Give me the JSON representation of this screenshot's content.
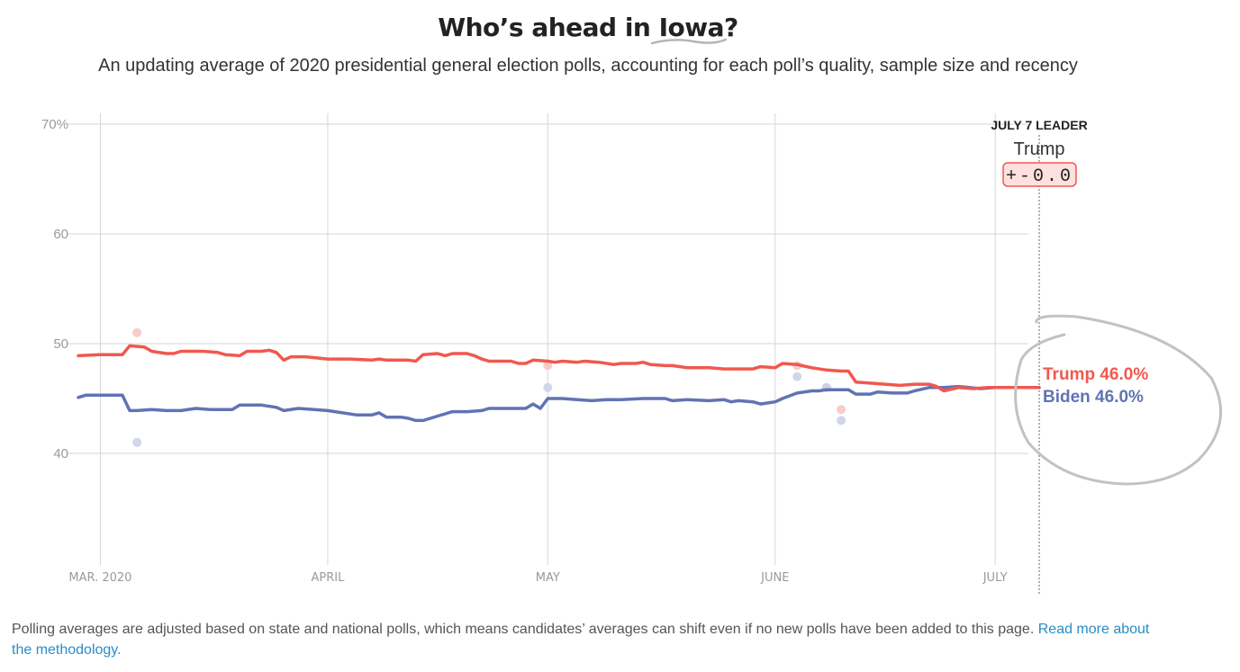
{
  "header": {
    "title": "Who’s ahead in Iowa?",
    "subtitle": "An updating average of 2020 presidential general election polls, accounting for each poll’s quality, sample size and recency"
  },
  "leader_box": {
    "heading": "JULY 7 LEADER",
    "name": "Trump",
    "margin": "+-0.0"
  },
  "footnote": {
    "text": "Polling averages are adjusted based on state and national polls, which means candidates’ averages can shift even if no new polls have been added to this page.",
    "link": "Read more about the methodology."
  },
  "colors": {
    "trump": "#f0584f",
    "biden": "#6173b3",
    "grid": "#d6d6d6",
    "axis_text": "#9a9a9a"
  },
  "chart_data": {
    "type": "line",
    "x_type": "date",
    "x_start": "2020-02-27",
    "x_end": "2020-07-07",
    "ylim": [
      30,
      71
    ],
    "y_ticks": [
      {
        "value": 70,
        "label": "70%"
      },
      {
        "value": 60,
        "label": "60"
      },
      {
        "value": 50,
        "label": "50"
      },
      {
        "value": 40,
        "label": "40"
      }
    ],
    "x_ticks": [
      {
        "date": "2020-03-01",
        "label": "MAR. 2020"
      },
      {
        "date": "2020-04-01",
        "label": "APRIL"
      },
      {
        "date": "2020-05-01",
        "label": "MAY"
      },
      {
        "date": "2020-06-01",
        "label": "JUNE"
      },
      {
        "date": "2020-07-01",
        "label": "JULY"
      }
    ],
    "grid": true,
    "series": [
      {
        "name": "Trump",
        "end_label": "Trump 46.0%",
        "points": [
          [
            "2020-02-27",
            48.9
          ],
          [
            "2020-03-01",
            49.0
          ],
          [
            "2020-03-04",
            49.0
          ],
          [
            "2020-03-05",
            49.8
          ],
          [
            "2020-03-07",
            49.7
          ],
          [
            "2020-03-08",
            49.3
          ],
          [
            "2020-03-10",
            49.1
          ],
          [
            "2020-03-11",
            49.1
          ],
          [
            "2020-03-12",
            49.3
          ],
          [
            "2020-03-15",
            49.3
          ],
          [
            "2020-03-17",
            49.2
          ],
          [
            "2020-03-18",
            49.0
          ],
          [
            "2020-03-20",
            48.9
          ],
          [
            "2020-03-21",
            49.3
          ],
          [
            "2020-03-23",
            49.3
          ],
          [
            "2020-03-24",
            49.4
          ],
          [
            "2020-03-25",
            49.2
          ],
          [
            "2020-03-26",
            48.5
          ],
          [
            "2020-03-27",
            48.8
          ],
          [
            "2020-03-29",
            48.8
          ],
          [
            "2020-04-01",
            48.6
          ],
          [
            "2020-04-04",
            48.6
          ],
          [
            "2020-04-07",
            48.5
          ],
          [
            "2020-04-08",
            48.6
          ],
          [
            "2020-04-09",
            48.5
          ],
          [
            "2020-04-12",
            48.5
          ],
          [
            "2020-04-13",
            48.4
          ],
          [
            "2020-04-14",
            49.0
          ],
          [
            "2020-04-16",
            49.1
          ],
          [
            "2020-04-17",
            48.9
          ],
          [
            "2020-04-18",
            49.1
          ],
          [
            "2020-04-20",
            49.1
          ],
          [
            "2020-04-21",
            48.9
          ],
          [
            "2020-04-22",
            48.6
          ],
          [
            "2020-04-23",
            48.4
          ],
          [
            "2020-04-26",
            48.4
          ],
          [
            "2020-04-27",
            48.2
          ],
          [
            "2020-04-28",
            48.2
          ],
          [
            "2020-04-29",
            48.5
          ],
          [
            "2020-05-01",
            48.4
          ],
          [
            "2020-05-02",
            48.3
          ],
          [
            "2020-05-03",
            48.4
          ],
          [
            "2020-05-05",
            48.3
          ],
          [
            "2020-05-06",
            48.4
          ],
          [
            "2020-05-08",
            48.3
          ],
          [
            "2020-05-10",
            48.1
          ],
          [
            "2020-05-11",
            48.2
          ],
          [
            "2020-05-13",
            48.2
          ],
          [
            "2020-05-14",
            48.3
          ],
          [
            "2020-05-15",
            48.1
          ],
          [
            "2020-05-17",
            48.0
          ],
          [
            "2020-05-18",
            48.0
          ],
          [
            "2020-05-20",
            47.8
          ],
          [
            "2020-05-23",
            47.8
          ],
          [
            "2020-05-25",
            47.7
          ],
          [
            "2020-05-29",
            47.7
          ],
          [
            "2020-05-30",
            47.9
          ],
          [
            "2020-06-01",
            47.8
          ],
          [
            "2020-06-02",
            48.2
          ],
          [
            "2020-06-04",
            48.1
          ],
          [
            "2020-06-06",
            47.8
          ],
          [
            "2020-06-08",
            47.6
          ],
          [
            "2020-06-10",
            47.5
          ],
          [
            "2020-06-11",
            47.5
          ],
          [
            "2020-06-12",
            46.5
          ],
          [
            "2020-06-14",
            46.4
          ],
          [
            "2020-06-16",
            46.3
          ],
          [
            "2020-06-18",
            46.2
          ],
          [
            "2020-06-20",
            46.3
          ],
          [
            "2020-06-22",
            46.3
          ],
          [
            "2020-06-23",
            46.1
          ],
          [
            "2020-06-24",
            45.7
          ],
          [
            "2020-06-26",
            46.0
          ],
          [
            "2020-06-28",
            45.9
          ],
          [
            "2020-06-30",
            46.0
          ],
          [
            "2020-07-02",
            46.0
          ],
          [
            "2020-07-04",
            46.0
          ],
          [
            "2020-07-07",
            46.0
          ]
        ]
      },
      {
        "name": "Biden",
        "end_label": "Biden 46.0%",
        "points": [
          [
            "2020-02-27",
            45.1
          ],
          [
            "2020-02-28",
            45.3
          ],
          [
            "2020-03-04",
            45.3
          ],
          [
            "2020-03-05",
            43.9
          ],
          [
            "2020-03-06",
            43.9
          ],
          [
            "2020-03-08",
            44.0
          ],
          [
            "2020-03-10",
            43.9
          ],
          [
            "2020-03-12",
            43.9
          ],
          [
            "2020-03-14",
            44.1
          ],
          [
            "2020-03-16",
            44.0
          ],
          [
            "2020-03-19",
            44.0
          ],
          [
            "2020-03-20",
            44.4
          ],
          [
            "2020-03-23",
            44.4
          ],
          [
            "2020-03-25",
            44.2
          ],
          [
            "2020-03-26",
            43.9
          ],
          [
            "2020-03-28",
            44.1
          ],
          [
            "2020-04-01",
            43.9
          ],
          [
            "2020-04-03",
            43.7
          ],
          [
            "2020-04-05",
            43.5
          ],
          [
            "2020-04-07",
            43.5
          ],
          [
            "2020-04-08",
            43.7
          ],
          [
            "2020-04-09",
            43.3
          ],
          [
            "2020-04-11",
            43.3
          ],
          [
            "2020-04-12",
            43.2
          ],
          [
            "2020-04-13",
            43.0
          ],
          [
            "2020-04-14",
            43.0
          ],
          [
            "2020-04-16",
            43.4
          ],
          [
            "2020-04-18",
            43.8
          ],
          [
            "2020-04-20",
            43.8
          ],
          [
            "2020-04-22",
            43.9
          ],
          [
            "2020-04-23",
            44.1
          ],
          [
            "2020-04-28",
            44.1
          ],
          [
            "2020-04-29",
            44.5
          ],
          [
            "2020-04-30",
            44.1
          ],
          [
            "2020-05-01",
            45.0
          ],
          [
            "2020-05-03",
            45.0
          ],
          [
            "2020-05-05",
            44.9
          ],
          [
            "2020-05-07",
            44.8
          ],
          [
            "2020-05-09",
            44.9
          ],
          [
            "2020-05-11",
            44.9
          ],
          [
            "2020-05-14",
            45.0
          ],
          [
            "2020-05-17",
            45.0
          ],
          [
            "2020-05-18",
            44.8
          ],
          [
            "2020-05-20",
            44.9
          ],
          [
            "2020-05-23",
            44.8
          ],
          [
            "2020-05-25",
            44.9
          ],
          [
            "2020-05-26",
            44.7
          ],
          [
            "2020-05-27",
            44.8
          ],
          [
            "2020-05-29",
            44.7
          ],
          [
            "2020-05-30",
            44.5
          ],
          [
            "2020-06-01",
            44.7
          ],
          [
            "2020-06-02",
            45.0
          ],
          [
            "2020-06-04",
            45.5
          ],
          [
            "2020-06-06",
            45.7
          ],
          [
            "2020-06-07",
            45.7
          ],
          [
            "2020-06-08",
            45.8
          ],
          [
            "2020-06-11",
            45.8
          ],
          [
            "2020-06-12",
            45.4
          ],
          [
            "2020-06-14",
            45.4
          ],
          [
            "2020-06-15",
            45.6
          ],
          [
            "2020-06-17",
            45.5
          ],
          [
            "2020-06-19",
            45.5
          ],
          [
            "2020-06-20",
            45.7
          ],
          [
            "2020-06-22",
            46.0
          ],
          [
            "2020-06-24",
            46.0
          ],
          [
            "2020-06-26",
            46.1
          ],
          [
            "2020-06-29",
            45.9
          ],
          [
            "2020-07-01",
            46.0
          ],
          [
            "2020-07-07",
            46.0
          ]
        ]
      }
    ],
    "polls": [
      {
        "candidate": "Trump",
        "date": "2020-03-06",
        "value": 51
      },
      {
        "candidate": "Biden",
        "date": "2020-03-06",
        "value": 41
      },
      {
        "candidate": "Trump",
        "date": "2020-05-01",
        "value": 48
      },
      {
        "candidate": "Biden",
        "date": "2020-05-01",
        "value": 46
      },
      {
        "candidate": "Trump",
        "date": "2020-06-04",
        "value": 48
      },
      {
        "candidate": "Biden",
        "date": "2020-06-04",
        "value": 47
      },
      {
        "candidate": "Trump",
        "date": "2020-06-08",
        "value": 46
      },
      {
        "candidate": "Biden",
        "date": "2020-06-08",
        "value": 46
      },
      {
        "candidate": "Trump",
        "date": "2020-06-10",
        "value": 44
      },
      {
        "candidate": "Biden",
        "date": "2020-06-10",
        "value": 43
      }
    ]
  }
}
